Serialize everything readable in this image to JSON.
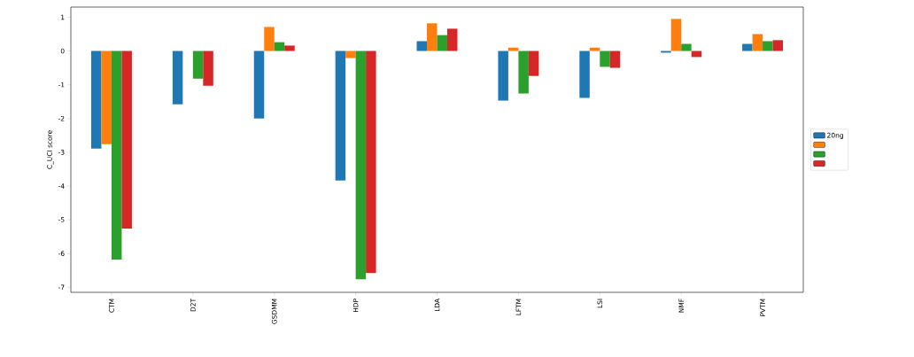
{
  "chart_data": {
    "type": "bar",
    "ylabel": "C_UCI score",
    "categories": [
      "CTM",
      "D2T",
      "GSDMM",
      "HDP",
      "LDA",
      "LFTM",
      "LSI",
      "NMF",
      "PVTM"
    ],
    "series": [
      {
        "name": "20ng",
        "color": "#1f77b4",
        "values": [
          -2.89,
          -1.58,
          -2.0,
          -3.84,
          0.29,
          -1.47,
          -1.39,
          -0.05,
          0.21
        ]
      },
      {
        "color": "#ff7f0e",
        "values": [
          -2.76,
          null,
          0.71,
          -0.21,
          0.82,
          0.1,
          0.1,
          0.95,
          0.5
        ]
      },
      {
        "color": "#2ca02c",
        "values": [
          -6.18,
          -0.82,
          0.26,
          -6.76,
          0.47,
          -1.26,
          -0.47,
          0.21,
          0.29
        ]
      },
      {
        "color": "#d62728",
        "values": [
          -5.26,
          -1.03,
          0.16,
          -6.58,
          0.66,
          -0.74,
          -0.5,
          -0.18,
          0.32
        ]
      }
    ],
    "ylim": [
      -7.15,
      1.3
    ],
    "yticks": [
      -7,
      -6,
      -5,
      -4,
      -3,
      -2,
      -1,
      0,
      1
    ],
    "legend": "right",
    "grid": false
  }
}
